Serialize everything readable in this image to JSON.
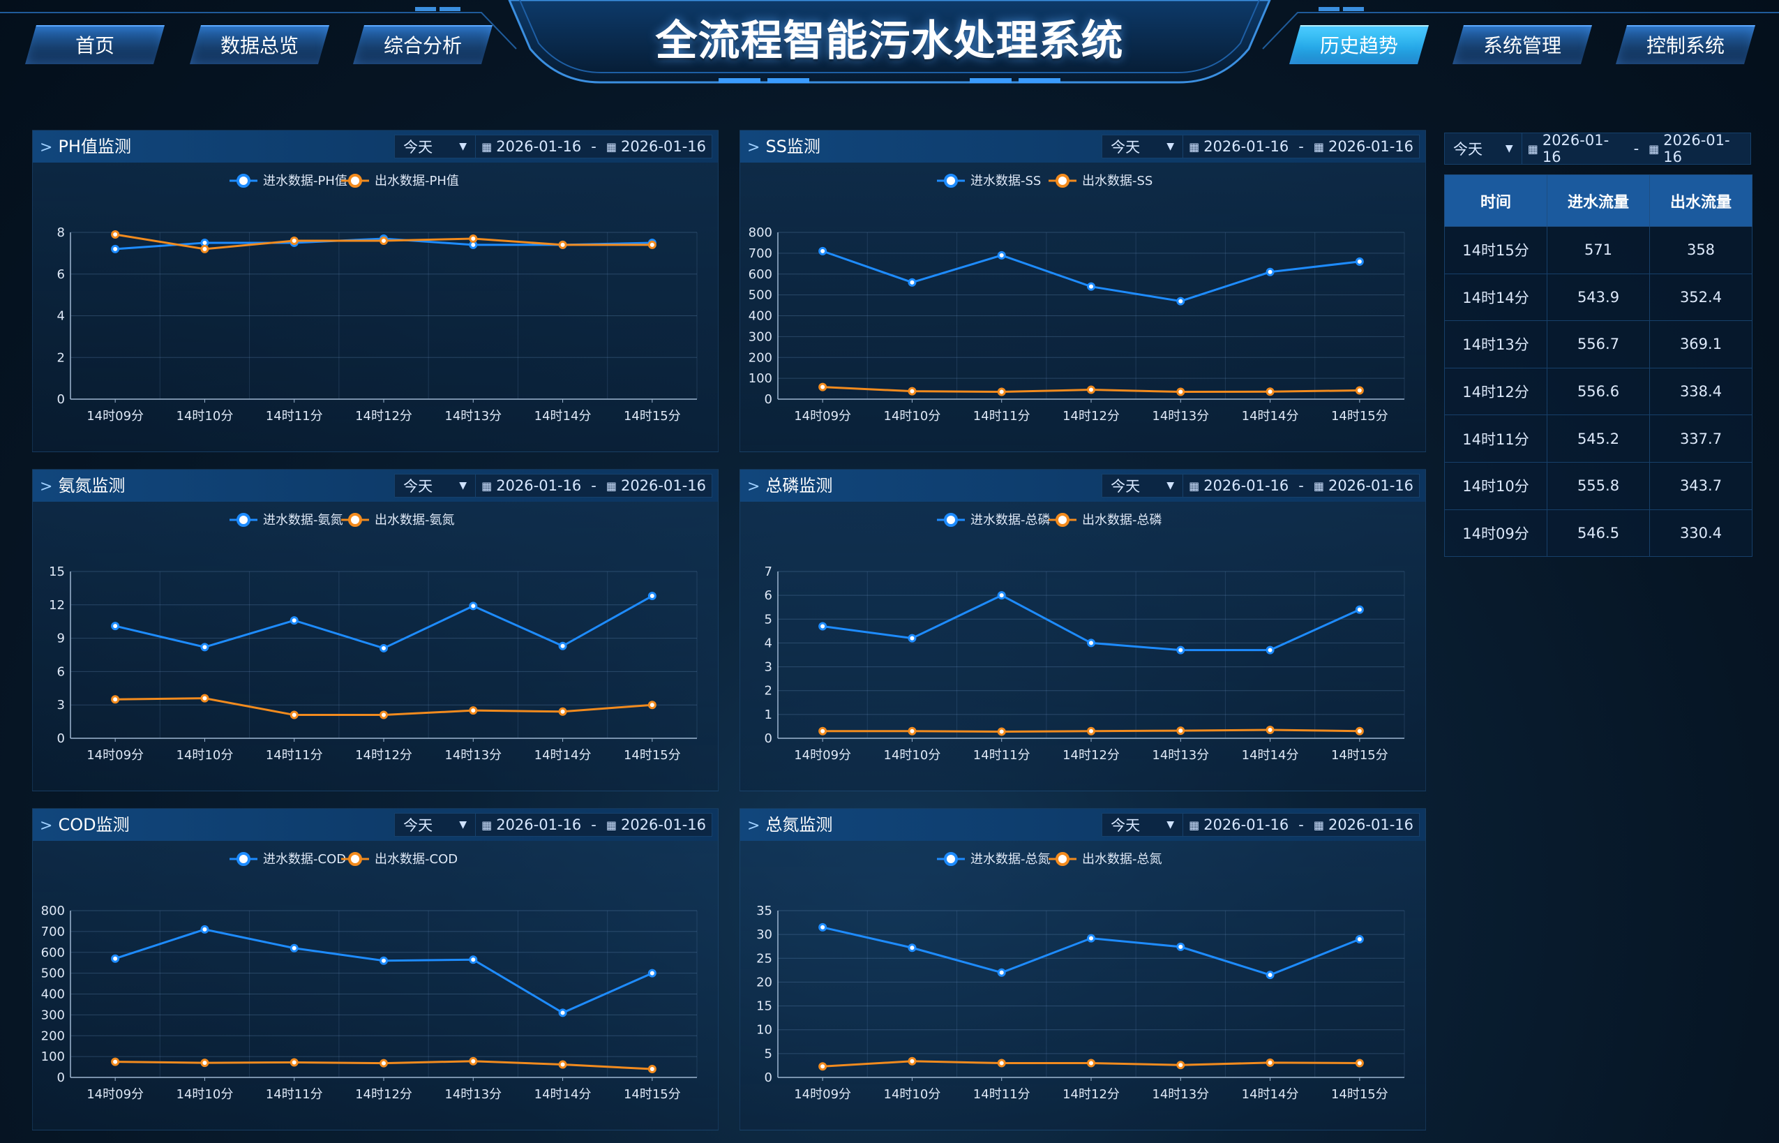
{
  "header": {
    "title": "全流程智能污水处理系统",
    "nav_left": [
      {
        "label": "首页",
        "active": false
      },
      {
        "label": "数据总览",
        "active": false
      },
      {
        "label": "综合分析",
        "active": false
      }
    ],
    "nav_right": [
      {
        "label": "历史趋势",
        "active": true
      },
      {
        "label": "系统管理",
        "active": false
      },
      {
        "label": "控制系统",
        "active": false
      }
    ]
  },
  "filter": {
    "range_label": "今天",
    "start_date": "2026-01-16",
    "end_date": "2026-01-16",
    "separator": "-",
    "caret_icon": "caret-down-icon",
    "calendar_icon": "calendar-icon"
  },
  "colors": {
    "inflow": "#1e8cff",
    "outflow": "#f28b1e"
  },
  "panels": [
    {
      "title": "PH值监测"
    },
    {
      "title": "SS监测"
    },
    {
      "title": "氨氮监测"
    },
    {
      "title": "总磷监测"
    },
    {
      "title": "COD监测"
    },
    {
      "title": "总氮监测"
    }
  ],
  "chart_data": [
    {
      "type": "line",
      "title": "PH值监测",
      "categories": [
        "14时09分",
        "14时10分",
        "14时11分",
        "14时12分",
        "14时13分",
        "14时14分",
        "14时15分"
      ],
      "yticks": [
        0,
        2,
        4,
        6,
        8
      ],
      "ylim": [
        0,
        8
      ],
      "series": [
        {
          "name": "进水数据-PH值",
          "values": [
            7.2,
            7.5,
            7.5,
            7.7,
            7.4,
            7.4,
            7.5
          ]
        },
        {
          "name": "出水数据-PH值",
          "values": [
            7.9,
            7.2,
            7.6,
            7.6,
            7.7,
            7.4,
            7.4
          ]
        }
      ],
      "legend": "top-center",
      "grid": true
    },
    {
      "type": "line",
      "title": "SS监测",
      "categories": [
        "14时09分",
        "14时10分",
        "14时11分",
        "14时12分",
        "14时13分",
        "14时14分",
        "14时15分"
      ],
      "yticks": [
        0,
        100,
        200,
        300,
        400,
        500,
        600,
        700,
        800
      ],
      "ylim": [
        0,
        800
      ],
      "series": [
        {
          "name": "进水数据-SS",
          "values": [
            710,
            560,
            690,
            540,
            470,
            610,
            660
          ]
        },
        {
          "name": "出水数据-SS",
          "values": [
            58,
            38,
            35,
            45,
            35,
            36,
            42
          ]
        }
      ],
      "legend": "top-center",
      "grid": true
    },
    {
      "type": "line",
      "title": "氨氮监测",
      "categories": [
        "14时09分",
        "14时10分",
        "14时11分",
        "14时12分",
        "14时13分",
        "14时14分",
        "14时15分"
      ],
      "yticks": [
        0,
        3,
        6,
        9,
        12,
        15
      ],
      "ylim": [
        0,
        15
      ],
      "series": [
        {
          "name": "进水数据-氨氮",
          "values": [
            10.1,
            8.2,
            10.6,
            8.1,
            11.9,
            8.3,
            12.8
          ]
        },
        {
          "name": "出水数据-氨氮",
          "values": [
            3.5,
            3.6,
            2.1,
            2.1,
            2.5,
            2.4,
            3.0
          ]
        }
      ],
      "legend": "top-center",
      "grid": true
    },
    {
      "type": "line",
      "title": "总磷监测",
      "categories": [
        "14时09分",
        "14时10分",
        "14时11分",
        "14时12分",
        "14时13分",
        "14时14分",
        "14时15分"
      ],
      "yticks": [
        0,
        1,
        2,
        3,
        4,
        5,
        6,
        7
      ],
      "ylim": [
        0,
        7
      ],
      "series": [
        {
          "name": "进水数据-总磷",
          "values": [
            4.7,
            4.2,
            6.0,
            4.0,
            3.7,
            3.7,
            5.4
          ]
        },
        {
          "name": "出水数据-总磷",
          "values": [
            0.3,
            0.3,
            0.28,
            0.3,
            0.32,
            0.35,
            0.3
          ]
        }
      ],
      "legend": "top-center",
      "grid": true
    },
    {
      "type": "line",
      "title": "COD监测",
      "categories": [
        "14时09分",
        "14时10分",
        "14时11分",
        "14时12分",
        "14时13分",
        "14时14分",
        "14时15分"
      ],
      "yticks": [
        0,
        100,
        200,
        300,
        400,
        500,
        600,
        700,
        800
      ],
      "ylim": [
        0,
        800
      ],
      "series": [
        {
          "name": "进水数据-COD",
          "values": [
            570,
            710,
            620,
            560,
            565,
            310,
            500
          ]
        },
        {
          "name": "出水数据-COD",
          "values": [
            75,
            70,
            72,
            68,
            78,
            62,
            40
          ]
        }
      ],
      "legend": "top-center",
      "grid": true
    },
    {
      "type": "line",
      "title": "总氮监测",
      "categories": [
        "14时09分",
        "14时10分",
        "14时11分",
        "14时12分",
        "14时13分",
        "14时14分",
        "14时15分"
      ],
      "yticks": [
        0,
        5,
        10,
        15,
        20,
        25,
        30,
        35
      ],
      "ylim": [
        0,
        35
      ],
      "series": [
        {
          "name": "进水数据-总氮",
          "values": [
            31.5,
            27.2,
            22.0,
            29.2,
            27.4,
            21.5,
            29.0
          ]
        },
        {
          "name": "出水数据-总氮",
          "values": [
            2.3,
            3.4,
            3.0,
            3.0,
            2.6,
            3.1,
            3.0
          ]
        }
      ],
      "legend": "top-center",
      "grid": true
    }
  ],
  "table": {
    "headers": [
      "时间",
      "进水流量",
      "出水流量"
    ],
    "rows": [
      [
        "14时15分",
        "571",
        "358"
      ],
      [
        "14时14分",
        "543.9",
        "352.4"
      ],
      [
        "14时13分",
        "556.7",
        "369.1"
      ],
      [
        "14时12分",
        "556.6",
        "338.4"
      ],
      [
        "14时11分",
        "545.2",
        "337.7"
      ],
      [
        "14时10分",
        "555.8",
        "343.7"
      ],
      [
        "14时09分",
        "546.5",
        "330.4"
      ]
    ]
  }
}
